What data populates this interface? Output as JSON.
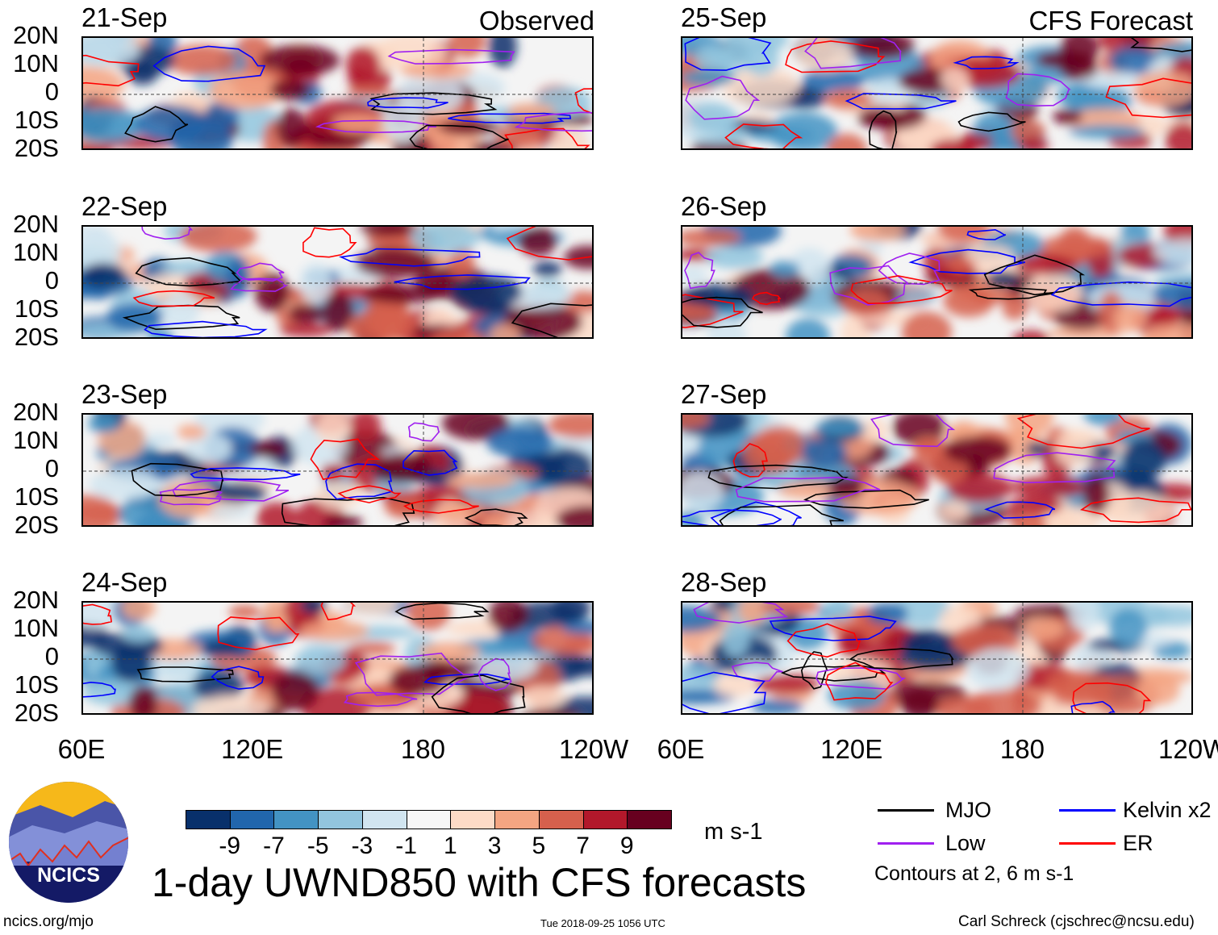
{
  "corner_labels": {
    "left": "Observed",
    "right": "CFS Forecast"
  },
  "panels": [
    {
      "date": "21-Sep",
      "column": "observed"
    },
    {
      "date": "22-Sep",
      "column": "observed"
    },
    {
      "date": "23-Sep",
      "column": "observed"
    },
    {
      "date": "24-Sep",
      "column": "observed"
    },
    {
      "date": "25-Sep",
      "column": "forecast"
    },
    {
      "date": "26-Sep",
      "column": "forecast"
    },
    {
      "date": "27-Sep",
      "column": "forecast"
    },
    {
      "date": "28-Sep",
      "column": "forecast"
    }
  ],
  "lat_labels": [
    "20N",
    "10N",
    "0",
    "10S",
    "20S"
  ],
  "lon_labels": [
    "60E",
    "120E",
    "180",
    "120W"
  ],
  "colorbar": {
    "colors": [
      "#08306b",
      "#2166ac",
      "#4393c3",
      "#92c5de",
      "#d1e5f0",
      "#f7f7f7",
      "#fddbc7",
      "#f4a582",
      "#d6604d",
      "#b2182b",
      "#67001f"
    ],
    "labels": [
      "-9",
      "-7",
      "-5",
      "-3",
      "-1",
      "1",
      "3",
      "5",
      "7",
      "9"
    ],
    "units": "m s-1"
  },
  "legend": {
    "items": [
      {
        "label": "MJO",
        "color": "#000000"
      },
      {
        "label": "Kelvin x2",
        "color": "#0000ff"
      },
      {
        "label": "Low",
        "color": "#a020f0"
      },
      {
        "label": "ER",
        "color": "#ff0000"
      }
    ],
    "note": "Contours at 2, 6 m s-1"
  },
  "logo_text": "NCICS",
  "title": "1-day UWND850 with CFS forecasts",
  "footer": {
    "left": "ncics.org/mjo",
    "center": "Tue 2018-09-25 1056 UTC",
    "right": "Carl Schreck (cjschrec@ncsu.edu)"
  }
}
